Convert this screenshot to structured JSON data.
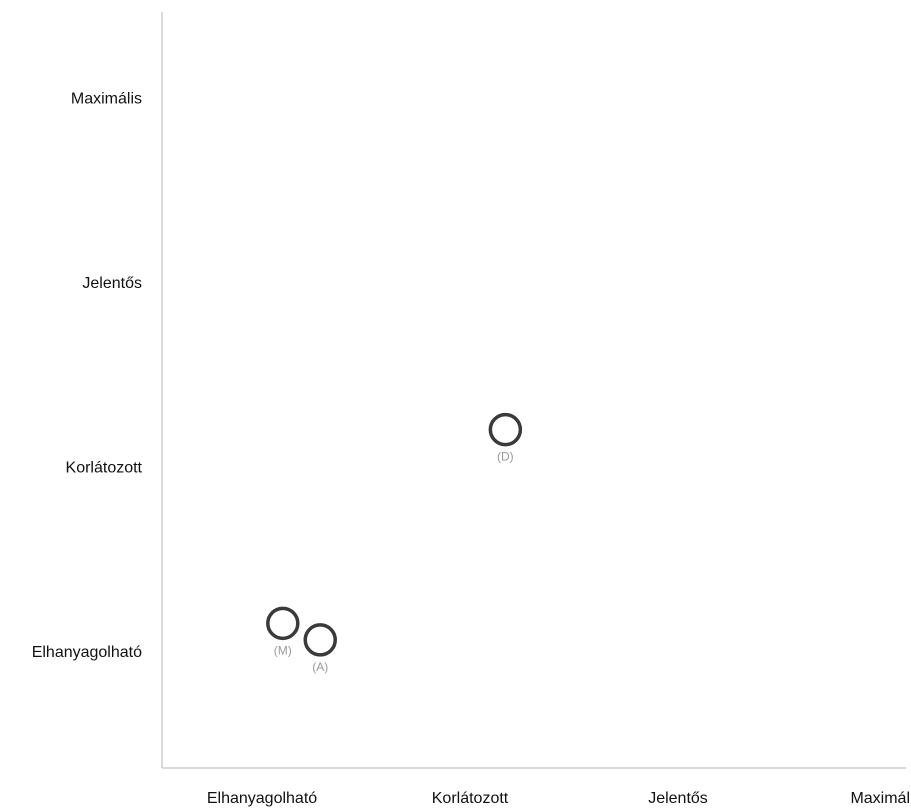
{
  "chart_data": {
    "type": "scatter",
    "title": "",
    "xlabel": "",
    "ylabel": "",
    "categories": [
      "Elhanyagolható",
      "Korlátozott",
      "Jelentős",
      "Maximális"
    ],
    "x_ticks": [
      "Elhanyagolható",
      "Korlátozott",
      "Jelentős",
      "Maximális"
    ],
    "y_ticks": [
      "Elhanyagolható",
      "Korlátozott",
      "Jelentős",
      "Maximális"
    ],
    "xlim": [
      0.5,
      4.6
    ],
    "ylim": [
      0.5,
      4.5
    ],
    "grid": false,
    "marker": "hollow-circle",
    "marker_color": "#3a3a3a",
    "points": [
      {
        "label": "(M)",
        "x": 1.1,
        "y": 1.15
      },
      {
        "label": "(A)",
        "x": 1.28,
        "y": 1.06
      },
      {
        "label": "(D)",
        "x": 2.17,
        "y": 2.2
      }
    ]
  }
}
